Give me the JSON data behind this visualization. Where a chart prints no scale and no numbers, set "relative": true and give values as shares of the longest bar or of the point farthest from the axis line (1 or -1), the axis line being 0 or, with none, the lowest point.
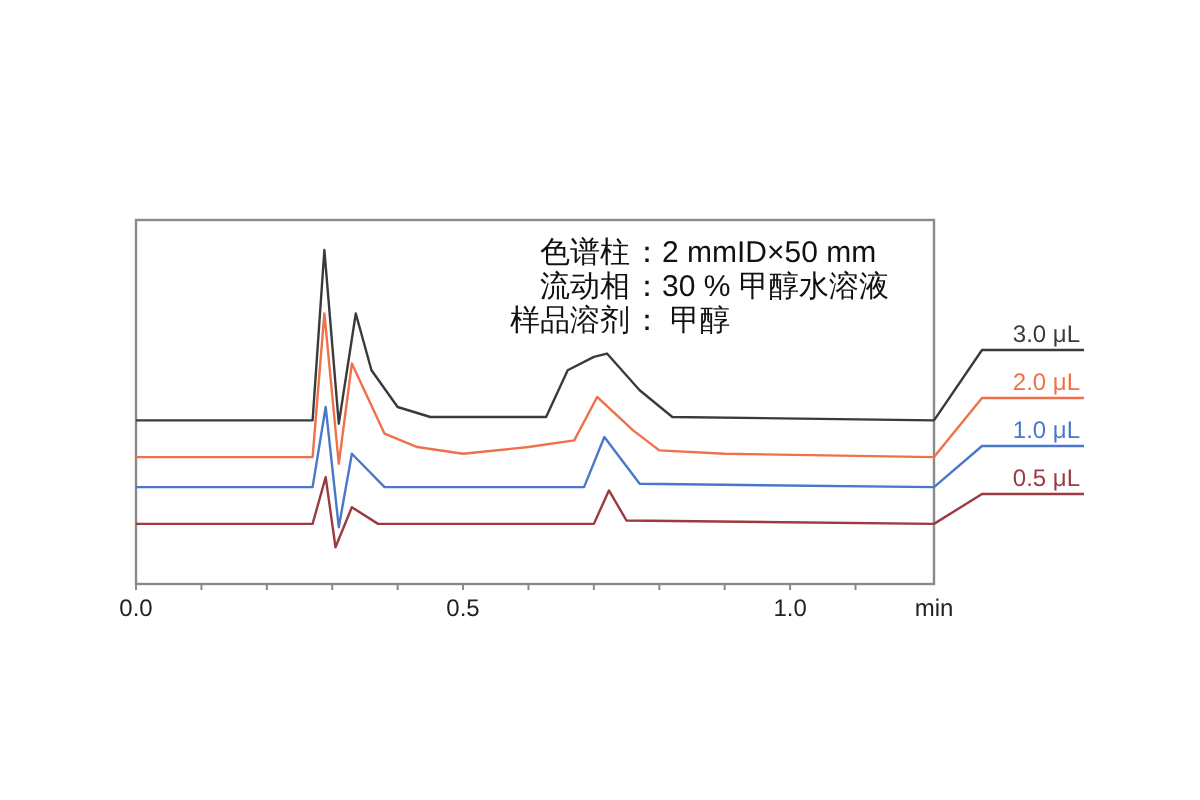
{
  "chart_data": {
    "type": "line",
    "relative": true,
    "xlabel": "min",
    "annotations": [
      "色谱柱 ：2 mmID×50 mm",
      "流动相 ：30 % 甲醇水溶液",
      "样品溶剂： 甲醇"
    ],
    "xlim": [
      0,
      1.22
    ],
    "xticks": [
      {
        "value": 0,
        "label": "0.0"
      },
      {
        "value": 0.1,
        "label": null
      },
      {
        "value": 0.2,
        "label": null
      },
      {
        "value": 0.3,
        "label": null
      },
      {
        "value": 0.4,
        "label": null
      },
      0.5,
      {
        "value": 0.6,
        "label": null
      },
      {
        "value": 0.7,
        "label": null
      },
      {
        "value": 0.8,
        "label": null
      },
      {
        "value": 0.9,
        "label": null
      },
      {
        "value": 1,
        "label": "1.0"
      },
      {
        "value": 1.1,
        "label": null
      }
    ],
    "legend": "right",
    "grid": false,
    "series": [
      {
        "name": "3.0 μL",
        "color": "#3a3a3a",
        "x": [
          0,
          0.27,
          0.288,
          0.31,
          0.336,
          0.36,
          0.4,
          0.45,
          0.627,
          0.66,
          0.7,
          0.72,
          0.77,
          0.82,
          1.22
        ],
        "values": [
          0.49,
          0.49,
          1.0,
          0.48,
          0.81,
          0.64,
          0.53,
          0.5,
          0.5,
          0.64,
          0.68,
          0.69,
          0.58,
          0.5,
          0.49
        ]
      },
      {
        "name": "2.0 μL",
        "color": "#f0704a",
        "x": [
          0,
          0.27,
          0.288,
          0.31,
          0.33,
          0.38,
          0.43,
          0.5,
          0.6,
          0.67,
          0.705,
          0.76,
          0.8,
          0.9,
          1.22
        ],
        "values": [
          0.38,
          0.38,
          0.81,
          0.36,
          0.66,
          0.45,
          0.41,
          0.39,
          0.41,
          0.43,
          0.56,
          0.46,
          0.4,
          0.39,
          0.38
        ]
      },
      {
        "name": "1.0 μL",
        "color": "#4a78c8",
        "x": [
          0,
          0.27,
          0.29,
          0.31,
          0.33,
          0.38,
          0.685,
          0.716,
          0.77,
          1.22
        ],
        "values": [
          0.29,
          0.29,
          0.53,
          0.17,
          0.39,
          0.29,
          0.29,
          0.44,
          0.3,
          0.29
        ]
      },
      {
        "name": "0.5 μL",
        "color": "#9b3a40",
        "x": [
          0,
          0.27,
          0.29,
          0.305,
          0.33,
          0.37,
          0.7,
          0.723,
          0.75,
          1.22
        ],
        "values": [
          0.18,
          0.18,
          0.32,
          0.11,
          0.23,
          0.18,
          0.18,
          0.28,
          0.19,
          0.18
        ]
      }
    ]
  }
}
